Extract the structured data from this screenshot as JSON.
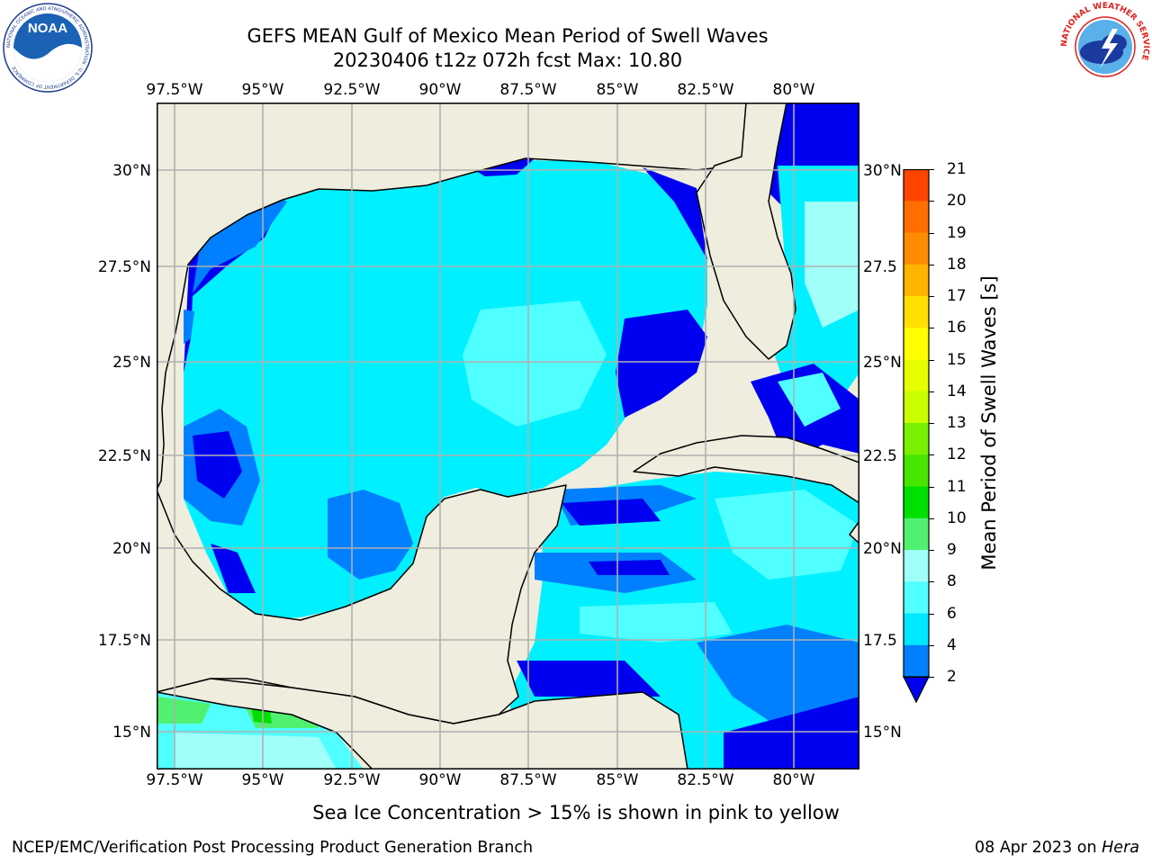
{
  "header": {
    "title_line1": "GEFS MEAN Gulf of Mexico Mean Period of Swell Waves",
    "title_line2": "20230406 t12z 072h fcst   Max: 10.80"
  },
  "logos": {
    "left": {
      "name": "noaa-logo",
      "text": "NOAA",
      "ring_text": "NATIONAL OCEANIC AND ATMOSPHERIC ADMINISTRATION · U.S. DEPARTMENT OF COMMERCE"
    },
    "right": {
      "name": "nws-logo",
      "ring_text": "NATIONAL WEATHER SERVICE"
    }
  },
  "map": {
    "longitude_ticks": [
      "97.5°W",
      "95°W",
      "92.5°W",
      "90°W",
      "87.5°W",
      "85°W",
      "82.5°W",
      "80°W"
    ],
    "latitude_ticks_left": [
      "30°N",
      "27.5°N",
      "25°N",
      "22.5°N",
      "20°N",
      "17.5°N",
      "15°N"
    ],
    "latitude_ticks_right": [
      "30°N",
      "27.5",
      "25°N",
      "22.5",
      "20°N",
      "17.5",
      "15°N"
    ],
    "colors": {
      "land": "#eeedde",
      "coast": "#000000",
      "grid": "#b0b0b0"
    }
  },
  "colorbar": {
    "title": "Mean Period of Swell Waves [s]",
    "ticks": [
      "21",
      "20",
      "19",
      "18",
      "17",
      "16",
      "15",
      "14",
      "13",
      "12",
      "11",
      "10",
      "9",
      "8",
      "6",
      "4",
      "2"
    ],
    "colors": [
      "#ff0000",
      "#ff2000",
      "#ff4400",
      "#ff6e00",
      "#ff8c00",
      "#ffb400",
      "#ffe000",
      "#ffff00",
      "#e6ff00",
      "#c8ff00",
      "#78f000",
      "#46e600",
      "#00e000",
      "#50f070",
      "#a0fff8",
      "#50ffff",
      "#00e8ff",
      "#0080ff",
      "#0000f0"
    ],
    "extend": "min"
  },
  "footer": {
    "note": "Sea Ice Concentration > 15% is shown in pink to yellow",
    "left": "NCEP/EMC/Verification Post Processing Product Generation Branch",
    "right_prefix": "08 Apr 2023 on ",
    "right_host": "Hera"
  }
}
